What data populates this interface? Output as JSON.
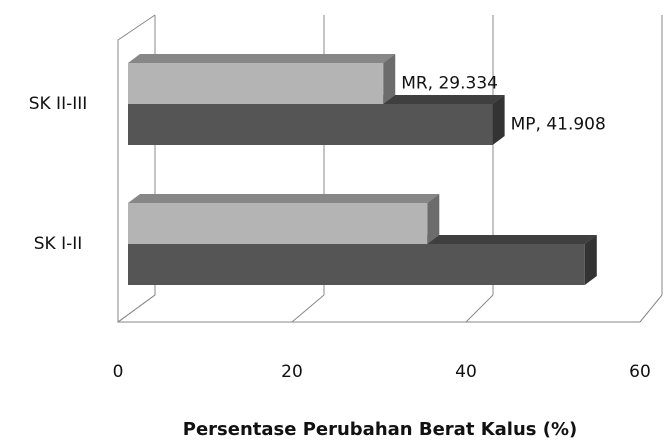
{
  "chart_data": {
    "type": "bar3d-horizontal",
    "x_label": "Persentase Perubahan Berat Kalus (%)",
    "categories": [
      "SK I-II",
      "SK II-III"
    ],
    "series": [
      {
        "name": "MR",
        "color": "#b4b4b4",
        "values": [
          34.4,
          29.334
        ],
        "value_labels": [
          null,
          "MR, 29.334"
        ]
      },
      {
        "name": "MP",
        "color": "#555555",
        "values": [
          52.5,
          41.908
        ],
        "value_labels": [
          null,
          "MP, 41.908"
        ]
      }
    ],
    "xlim": [
      0,
      60
    ],
    "xticks": [
      0,
      20,
      40,
      60
    ],
    "grid": true
  }
}
